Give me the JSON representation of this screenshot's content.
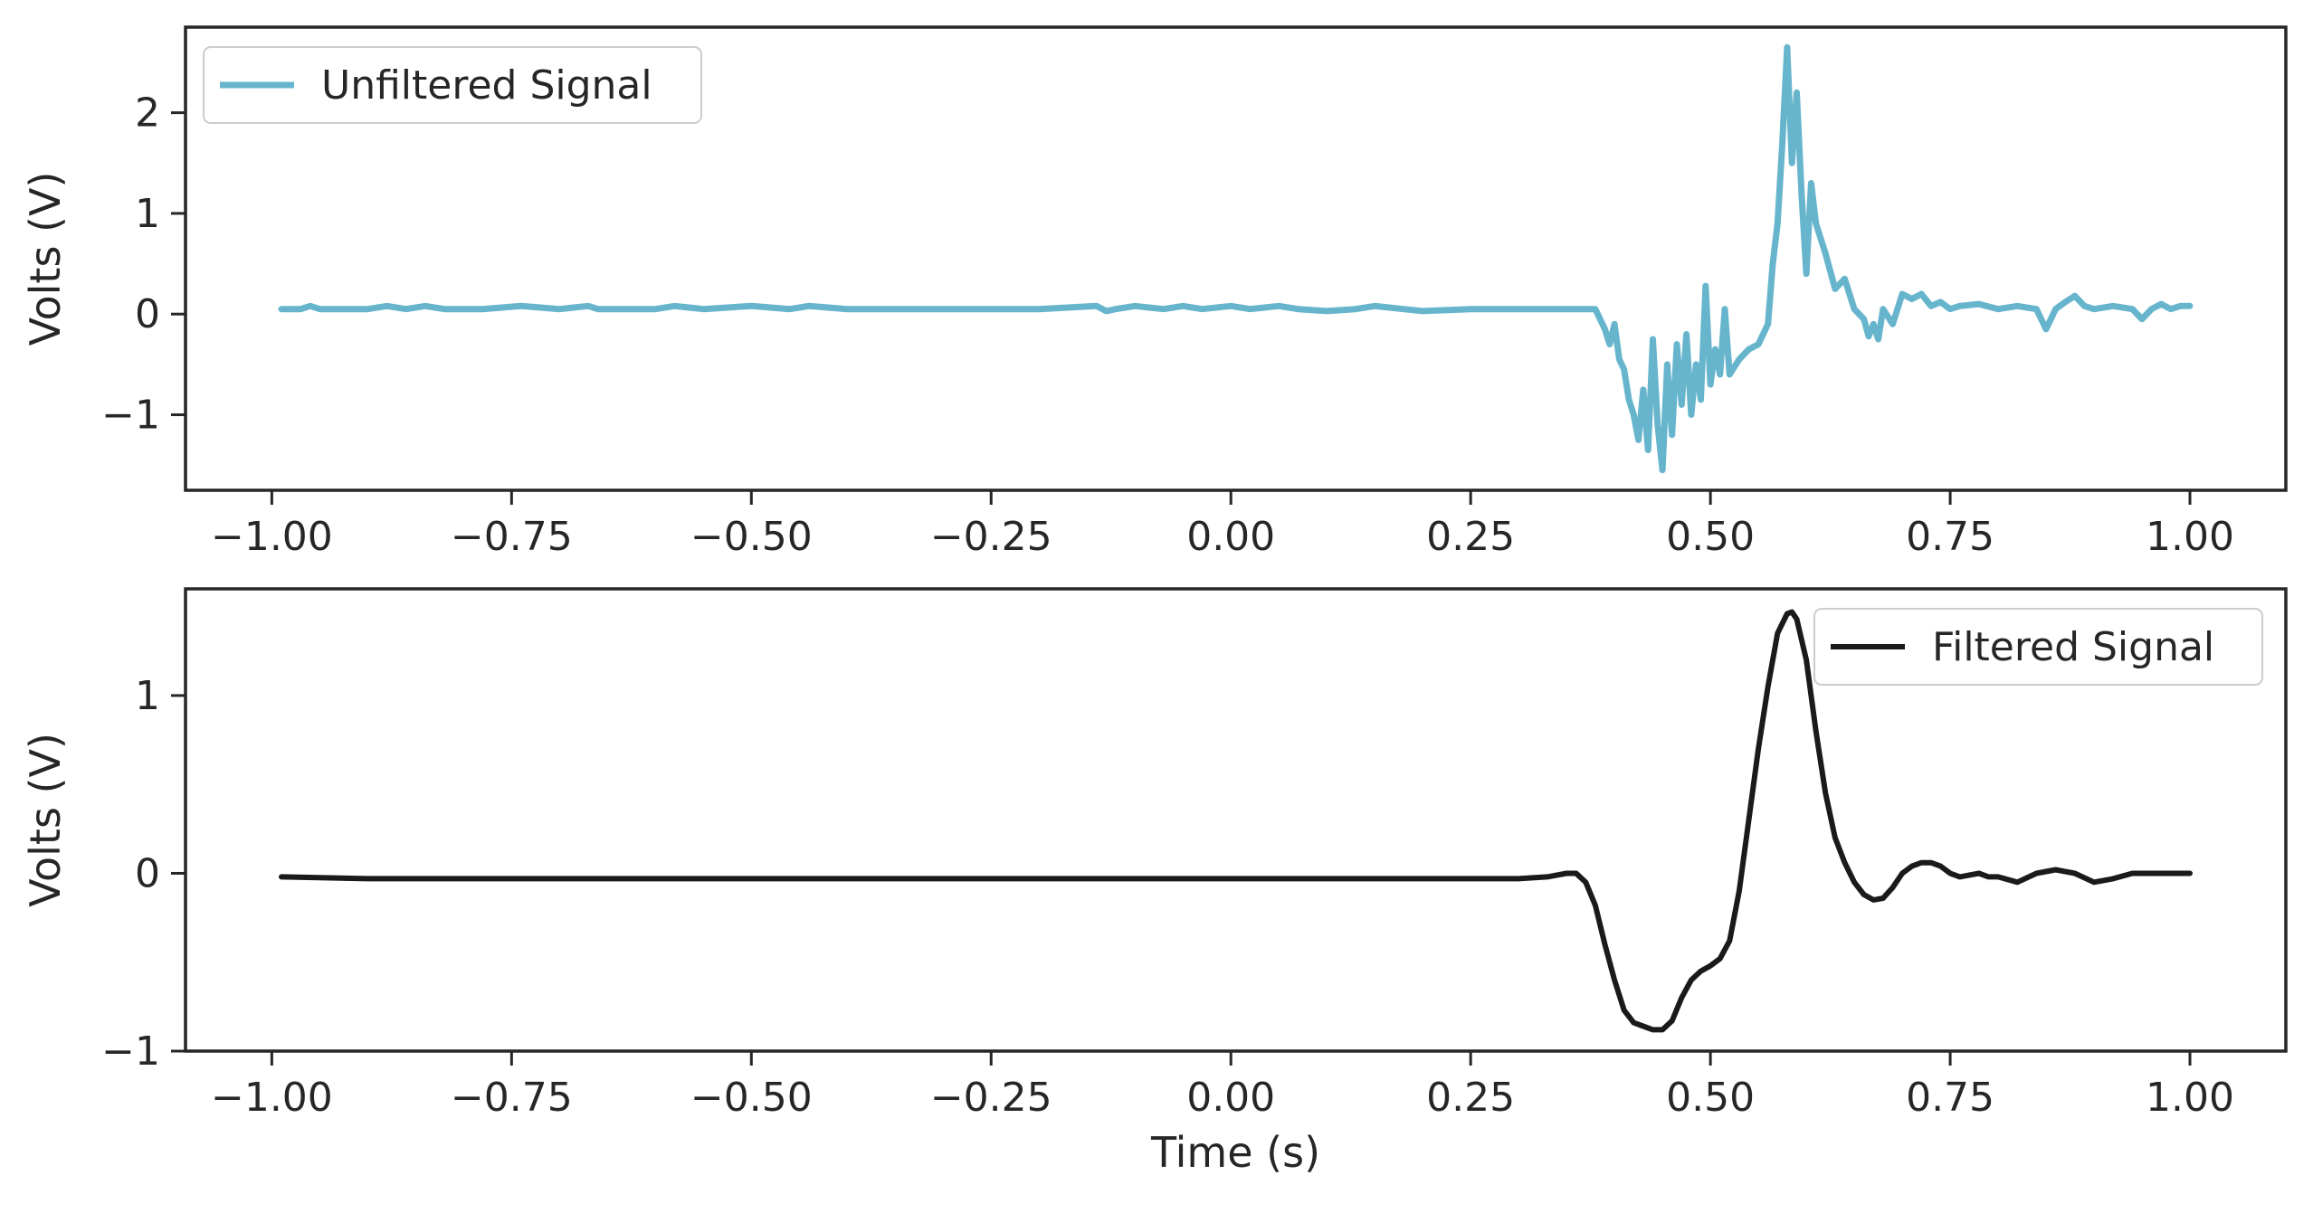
{
  "chart_data": [
    {
      "type": "line",
      "title": "",
      "xlabel": "",
      "ylabel": "Volts (V)",
      "xlim": [
        -1.09,
        1.1
      ],
      "ylim": [
        -1.75,
        2.85
      ],
      "x_ticks": [
        -1.0,
        -0.75,
        -0.5,
        -0.25,
        0.0,
        0.25,
        0.5,
        0.75,
        1.0
      ],
      "x_tick_labels": [
        "−1.00",
        "−0.75",
        "−0.50",
        "−0.25",
        "0.00",
        "0.25",
        "0.50",
        "0.75",
        "1.00"
      ],
      "y_ticks": [
        -1,
        0,
        1,
        2
      ],
      "y_tick_labels": [
        "−1",
        "0",
        "1",
        "2"
      ],
      "grid": false,
      "legend_position": "upper-left",
      "series": [
        {
          "name": "Unfiltered Signal",
          "color": "#67b5cd",
          "x": [
            -0.99,
            -0.97,
            -0.96,
            -0.95,
            -0.9,
            -0.88,
            -0.86,
            -0.84,
            -0.82,
            -0.78,
            -0.74,
            -0.7,
            -0.67,
            -0.66,
            -0.6,
            -0.58,
            -0.55,
            -0.5,
            -0.46,
            -0.44,
            -0.4,
            -0.3,
            -0.2,
            -0.14,
            -0.13,
            -0.12,
            -0.1,
            -0.07,
            -0.05,
            -0.03,
            0.0,
            0.02,
            0.05,
            0.07,
            0.1,
            0.13,
            0.15,
            0.18,
            0.2,
            0.25,
            0.3,
            0.33,
            0.36,
            0.38,
            0.39,
            0.395,
            0.4,
            0.405,
            0.41,
            0.415,
            0.42,
            0.425,
            0.43,
            0.435,
            0.44,
            0.445,
            0.45,
            0.455,
            0.46,
            0.465,
            0.47,
            0.475,
            0.48,
            0.485,
            0.49,
            0.495,
            0.5,
            0.505,
            0.51,
            0.515,
            0.52,
            0.53,
            0.54,
            0.55,
            0.56,
            0.565,
            0.57,
            0.575,
            0.58,
            0.585,
            0.59,
            0.595,
            0.6,
            0.605,
            0.61,
            0.62,
            0.63,
            0.64,
            0.65,
            0.66,
            0.665,
            0.67,
            0.675,
            0.68,
            0.69,
            0.7,
            0.71,
            0.72,
            0.73,
            0.74,
            0.75,
            0.76,
            0.78,
            0.8,
            0.82,
            0.84,
            0.85,
            0.86,
            0.87,
            0.88,
            0.89,
            0.9,
            0.92,
            0.94,
            0.95,
            0.96,
            0.97,
            0.98,
            0.99,
            1.0
          ],
          "y": [
            0.05,
            0.05,
            0.08,
            0.05,
            0.05,
            0.08,
            0.05,
            0.08,
            0.05,
            0.05,
            0.08,
            0.05,
            0.08,
            0.05,
            0.05,
            0.08,
            0.05,
            0.08,
            0.05,
            0.08,
            0.05,
            0.05,
            0.05,
            0.08,
            0.03,
            0.05,
            0.08,
            0.05,
            0.08,
            0.05,
            0.08,
            0.05,
            0.08,
            0.05,
            0.03,
            0.05,
            0.08,
            0.05,
            0.03,
            0.05,
            0.05,
            0.05,
            0.05,
            0.05,
            -0.15,
            -0.3,
            -0.1,
            -0.45,
            -0.55,
            -0.85,
            -1.0,
            -1.25,
            -0.75,
            -1.35,
            -0.25,
            -1.1,
            -1.55,
            -0.5,
            -1.2,
            -0.3,
            -0.9,
            -0.2,
            -1.0,
            -0.5,
            -0.85,
            0.28,
            -0.7,
            -0.35,
            -0.6,
            0.05,
            -0.6,
            -0.45,
            -0.35,
            -0.3,
            -0.1,
            0.5,
            0.9,
            1.7,
            2.65,
            1.5,
            2.2,
            1.2,
            0.4,
            1.3,
            0.9,
            0.6,
            0.25,
            0.35,
            0.05,
            -0.05,
            -0.22,
            -0.1,
            -0.25,
            0.05,
            -0.1,
            0.2,
            0.15,
            0.2,
            0.08,
            0.12,
            0.05,
            0.08,
            0.1,
            0.05,
            0.08,
            0.05,
            -0.15,
            0.05,
            0.12,
            0.18,
            0.08,
            0.05,
            0.08,
            0.05,
            -0.05,
            0.05,
            0.1,
            0.05,
            0.08,
            0.08
          ]
        }
      ]
    },
    {
      "type": "line",
      "title": "",
      "xlabel": "Time (s)",
      "ylabel": "Volts (V)",
      "xlim": [
        -1.09,
        1.1
      ],
      "ylim": [
        -1.0,
        1.6
      ],
      "x_ticks": [
        -1.0,
        -0.75,
        -0.5,
        -0.25,
        0.0,
        0.25,
        0.5,
        0.75,
        1.0
      ],
      "x_tick_labels": [
        "−1.00",
        "−0.75",
        "−0.50",
        "−0.25",
        "0.00",
        "0.25",
        "0.50",
        "0.75",
        "1.00"
      ],
      "y_ticks": [
        -1,
        0,
        1
      ],
      "y_tick_labels": [
        "−1",
        "0",
        "1"
      ],
      "grid": false,
      "legend_position": "upper-right",
      "series": [
        {
          "name": "Filtered Signal",
          "color": "#1a1a1a",
          "x": [
            -0.99,
            -0.9,
            -0.8,
            -0.7,
            -0.6,
            -0.5,
            -0.4,
            -0.3,
            -0.2,
            -0.1,
            0.0,
            0.1,
            0.2,
            0.3,
            0.33,
            0.35,
            0.36,
            0.37,
            0.38,
            0.39,
            0.4,
            0.41,
            0.42,
            0.43,
            0.44,
            0.45,
            0.46,
            0.47,
            0.48,
            0.49,
            0.5,
            0.51,
            0.52,
            0.53,
            0.54,
            0.55,
            0.56,
            0.57,
            0.58,
            0.585,
            0.59,
            0.6,
            0.61,
            0.62,
            0.63,
            0.64,
            0.65,
            0.66,
            0.67,
            0.68,
            0.69,
            0.7,
            0.71,
            0.72,
            0.73,
            0.74,
            0.75,
            0.76,
            0.77,
            0.78,
            0.79,
            0.8,
            0.82,
            0.84,
            0.86,
            0.88,
            0.9,
            0.92,
            0.94,
            0.96,
            0.98,
            1.0
          ],
          "y": [
            -0.02,
            -0.03,
            -0.03,
            -0.03,
            -0.03,
            -0.03,
            -0.03,
            -0.03,
            -0.03,
            -0.03,
            -0.03,
            -0.03,
            -0.03,
            -0.03,
            -0.02,
            0.0,
            0.0,
            -0.05,
            -0.18,
            -0.4,
            -0.6,
            -0.77,
            -0.84,
            -0.86,
            -0.88,
            -0.88,
            -0.83,
            -0.7,
            -0.6,
            -0.55,
            -0.52,
            -0.48,
            -0.38,
            -0.1,
            0.3,
            0.7,
            1.05,
            1.35,
            1.46,
            1.47,
            1.43,
            1.2,
            0.8,
            0.45,
            0.2,
            0.06,
            -0.05,
            -0.12,
            -0.15,
            -0.14,
            -0.08,
            0.0,
            0.04,
            0.06,
            0.06,
            0.04,
            0.0,
            -0.02,
            -0.01,
            0.0,
            -0.02,
            -0.02,
            -0.05,
            0.0,
            0.02,
            0.0,
            -0.05,
            -0.03,
            0.0,
            0.0,
            0.0,
            0.0
          ]
        }
      ]
    }
  ]
}
